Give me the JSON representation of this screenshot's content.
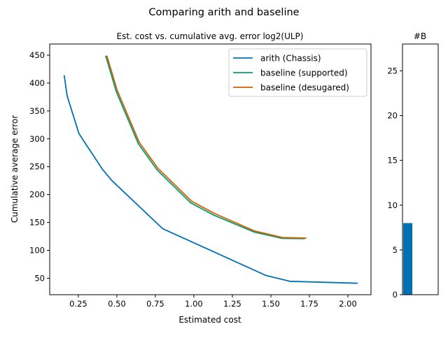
{
  "suptitle": "Comparing arith and baseline",
  "chart_data": [
    {
      "type": "line",
      "title": "Est. cost vs. cumulative avg. error log2(ULP)",
      "xlabel": "Estimated cost",
      "ylabel": "Cumulative average error",
      "xlim": [
        0.064,
        2.15
      ],
      "ylim": [
        20.5,
        470
      ],
      "xticks": [
        0.25,
        0.5,
        0.75,
        1.0,
        1.25,
        1.5,
        1.75,
        2.0
      ],
      "xtick_labels": [
        "0.25",
        "0.50",
        "0.75",
        "1.00",
        "1.25",
        "1.50",
        "1.75",
        "2.00"
      ],
      "yticks": [
        50,
        100,
        150,
        200,
        250,
        300,
        350,
        400,
        450
      ],
      "ytick_labels": [
        "50",
        "100",
        "150",
        "200",
        "250",
        "300",
        "350",
        "400",
        "450"
      ],
      "grid": false,
      "legend": "top-right",
      "series": [
        {
          "name": "arith (Chassis)",
          "color": "#0072b2",
          "x": [
            0.158,
            0.177,
            0.253,
            0.264,
            0.405,
            0.468,
            0.797,
            1.38,
            1.468,
            1.623,
            2.064
          ],
          "y": [
            414,
            377,
            310,
            305,
            246,
            225,
            139,
            66,
            55,
            44.5,
            41
          ]
        },
        {
          "name": "baseline (supported)",
          "color": "#009e73",
          "x": [
            0.427,
            0.497,
            0.64,
            0.762,
            0.98,
            1.13,
            1.39,
            1.57,
            1.72
          ],
          "y": [
            449,
            384,
            291,
            244,
            185,
            163,
            133,
            121.5,
            121
          ]
        },
        {
          "name": "baseline (desugared)",
          "color": "#d55e00",
          "x": [
            0.435,
            0.502,
            0.645,
            0.767,
            0.985,
            1.135,
            1.392,
            1.574,
            1.73
          ],
          "y": [
            449,
            387,
            294,
            247,
            188,
            166,
            135,
            123,
            122
          ]
        }
      ]
    },
    {
      "type": "bar",
      "title": "#B",
      "categories": [
        ""
      ],
      "values": [
        8
      ],
      "color": "#0072b2",
      "ylim": [
        0,
        28
      ],
      "yticks": [
        0,
        5,
        10,
        15,
        20,
        25
      ],
      "ytick_labels": [
        "0",
        "5",
        "10",
        "15",
        "20",
        "25"
      ]
    }
  ]
}
